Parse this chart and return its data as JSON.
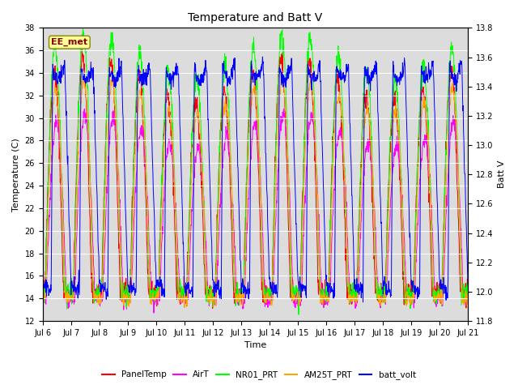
{
  "title": "Temperature and Batt V",
  "xlabel": "Time",
  "ylabel_left": "Temperature (C)",
  "ylabel_right": "Batt V",
  "ylim_left": [
    12,
    38
  ],
  "ylim_right": [
    11.8,
    13.8
  ],
  "x_tick_labels": [
    "Jul 6",
    "Jul 7",
    "Jul 8",
    "Jul 9",
    "Jul 10",
    "Jul 11",
    "Jul 12",
    "Jul 13",
    "Jul 14",
    "Jul 15",
    "Jul 16",
    "Jul 17",
    "Jul 18",
    "Jul 19",
    "Jul 20",
    "Jul 21"
  ],
  "annotation_text": "EE_met",
  "annotation_color": "#8B0000",
  "annotation_bg": "#FFFF99",
  "colors": {
    "PanelTemp": "#FF0000",
    "AirT": "#FF00FF",
    "NR01_PRT": "#00FF00",
    "AM25T_PRT": "#FFA500",
    "batt_volt": "#0000FF"
  },
  "background_color": "#DCDCDC",
  "n_days": 15,
  "samples_per_day": 96
}
